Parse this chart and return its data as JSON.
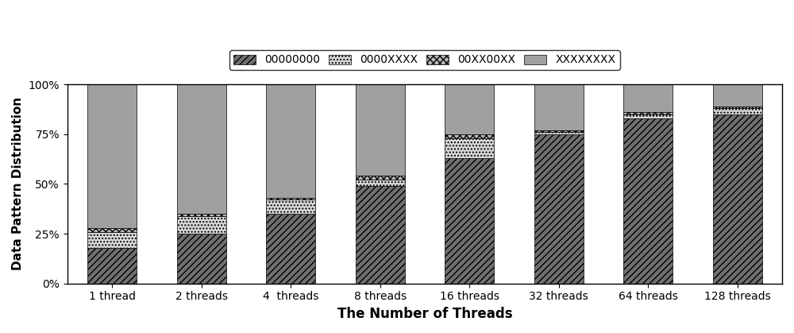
{
  "categories": [
    "1 thread",
    "2 threads",
    "4  threads",
    "8 threads",
    "16 threads",
    "32 threads",
    "64 threads",
    "128 threads"
  ],
  "series": {
    "00000000": [
      18.0,
      25.0,
      35.0,
      49.0,
      63.0,
      75.0,
      83.0,
      85.0
    ],
    "0000XXXX": [
      8.0,
      9.0,
      7.0,
      3.0,
      10.0,
      1.0,
      2.0,
      3.0
    ],
    "00XX00XX": [
      2.0,
      1.0,
      1.0,
      2.0,
      2.0,
      1.0,
      1.0,
      1.0
    ],
    "XXXXXXXX": [
      72.0,
      65.0,
      57.0,
      46.0,
      25.0,
      23.0,
      14.0,
      11.0
    ]
  },
  "ylabel": "Data Pattern Distribution",
  "xlabel": "The Number of Threads",
  "yticks": [
    0,
    25,
    50,
    75,
    100
  ],
  "yticklabels": [
    "0%",
    "25%",
    "50%",
    "75%",
    "100%"
  ],
  "figsize": [
    10.0,
    4.19
  ],
  "dpi": 100,
  "bar_width": 0.55,
  "facecolor": "#ffffff",
  "colors": {
    "00000000": "#707070",
    "0000XXXX": "#d8d8d8",
    "00XX00XX": "#b8b8b8",
    "XXXXXXXX": "#a0a0a0"
  },
  "hatches": {
    "00000000": "////",
    "0000XXXX": "....",
    "00XX00XX": "xxxx",
    "XXXXXXXX": "===="
  },
  "legend_order": [
    "00000000",
    "0000XXXX",
    "00XX00XX",
    "XXXXXXXX"
  ]
}
